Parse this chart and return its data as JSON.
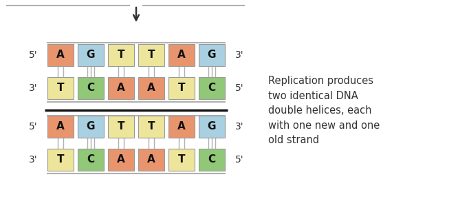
{
  "top_seq1": [
    "A",
    "G",
    "T",
    "T",
    "A",
    "G"
  ],
  "bot_seq1": [
    "T",
    "C",
    "A",
    "A",
    "T",
    "C"
  ],
  "top_seq2": [
    "A",
    "G",
    "T",
    "T",
    "A",
    "G"
  ],
  "bot_seq2": [
    "T",
    "C",
    "A",
    "A",
    "T",
    "C"
  ],
  "colors": {
    "A": "#E8956D",
    "G": "#A8D0E0",
    "T": "#EDE59A",
    "C": "#90C878"
  },
  "labels_top1": [
    "5'",
    "3'"
  ],
  "labels_bot1": [
    "3'",
    "5'"
  ],
  "labels_top2": [
    "5'",
    "3'"
  ],
  "labels_bot2": [
    "3'",
    "5'"
  ],
  "annotation": "Replication produces\ntwo identical DNA\ndouble helices, each\nwith one new and one\nold strand",
  "bg_color": "#ffffff",
  "text_color": "#333333",
  "backbone_color": "#b0b0b0",
  "bond_color": "#b0b0b0",
  "separator_color": "#111111",
  "box_edge_color": "#999999",
  "hbonds": [
    2,
    3,
    2,
    2,
    2,
    3
  ],
  "arrow_color": "#333333",
  "fig_width": 6.82,
  "fig_height": 3.05,
  "dpi": 100
}
